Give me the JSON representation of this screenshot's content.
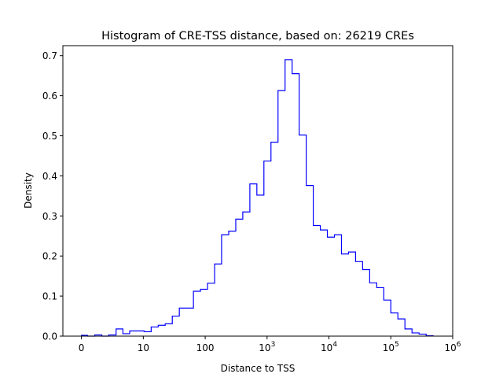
{
  "chart_data": {
    "type": "histogram",
    "histtype": "step",
    "title": "Histogram of CRE-TSS distance, based on: 26219 CREs",
    "xlabel": "Distance to TSS",
    "ylabel": "Density",
    "xscale": "symlog",
    "linthresh": 10,
    "xlim": [
      -3,
      1000000
    ],
    "ylim": [
      0,
      0.725
    ],
    "grid": false,
    "line_color": "#0000ff",
    "x_ticks": [
      {
        "value": 0,
        "base": "0",
        "exp": ""
      },
      {
        "value": 10,
        "base": "10",
        "exp": ""
      },
      {
        "value": 100,
        "base": "100",
        "exp": ""
      },
      {
        "value": 1000,
        "base": "10",
        "exp": "3"
      },
      {
        "value": 10000,
        "base": "10",
        "exp": "4"
      },
      {
        "value": 100000,
        "base": "10",
        "exp": "5"
      },
      {
        "value": 1000000,
        "base": "10",
        "exp": "6"
      }
    ],
    "y_ticks": [
      "0.0",
      "0.1",
      "0.2",
      "0.3",
      "0.4",
      "0.5",
      "0.6",
      "0.7"
    ],
    "bin_edges": [
      0,
      1.0,
      2.15,
      3.3,
      4.4,
      5.6,
      6.7,
      7.8,
      9.0,
      10.3,
      13.4,
      17.4,
      22.6,
      29.4,
      38.2,
      49.7,
      64.6,
      84,
      109,
      142,
      184,
      240,
      312,
      405,
      527,
      684,
      889,
      1156,
      1503,
      1954,
      2540,
      3302,
      4293,
      5580,
      7254,
      9430,
      12260,
      15940,
      20720,
      26930,
      35010,
      45510,
      59170,
      76920,
      100000,
      130000,
      169000,
      220000,
      286000,
      372000,
      483000
    ],
    "densities": [
      0.002,
      0,
      0.003,
      0,
      0.003,
      0.018,
      0.006,
      0.013,
      0.013,
      0.011,
      0.023,
      0.027,
      0.031,
      0.05,
      0.07,
      0.07,
      0.112,
      0.117,
      0.132,
      0.18,
      0.253,
      0.262,
      0.292,
      0.31,
      0.38,
      0.352,
      0.437,
      0.484,
      0.613,
      0.69,
      0.655,
      0.502,
      0.376,
      0.276,
      0.265,
      0.247,
      0.253,
      0.205,
      0.21,
      0.186,
      0.166,
      0.133,
      0.121,
      0.09,
      0.058,
      0.043,
      0.018,
      0.008,
      0.005,
      0.001
    ]
  }
}
